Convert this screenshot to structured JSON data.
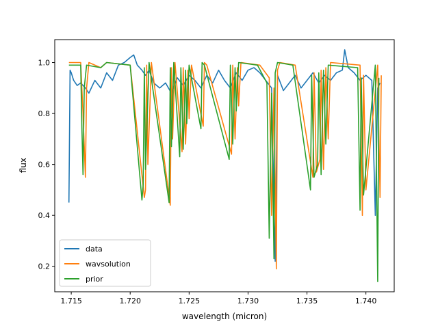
{
  "chart_data": {
    "type": "line",
    "title": "",
    "xlabel": "wavelength (micron)",
    "ylabel": "flux",
    "xlim": [
      1.7136,
      1.7424
    ],
    "ylim": [
      0.1,
      1.09
    ],
    "grid": false,
    "legend_position": "lower-left",
    "x_ticks": [
      1.715,
      1.72,
      1.725,
      1.73,
      1.735,
      1.74
    ],
    "x_tick_labels": [
      "1.715",
      "1.720",
      "1.725",
      "1.730",
      "1.735",
      "1.740"
    ],
    "y_ticks": [
      0.2,
      0.4,
      0.6,
      0.8,
      1.0
    ],
    "y_tick_labels": [
      "0.2",
      "0.4",
      "0.6",
      "0.8",
      "1.0"
    ],
    "series": [
      {
        "name": "data",
        "color": "#1f77b4",
        "x": [
          1.7148,
          1.7149,
          1.715,
          1.7152,
          1.7155,
          1.7158,
          1.7162,
          1.7165,
          1.717,
          1.7175,
          1.718,
          1.7185,
          1.719,
          1.7195,
          1.72,
          1.7203,
          1.7206,
          1.7208,
          1.721,
          1.7213,
          1.7216,
          1.722,
          1.7225,
          1.723,
          1.7235,
          1.724,
          1.7245,
          1.725,
          1.7255,
          1.726,
          1.7265,
          1.727,
          1.7275,
          1.728,
          1.7285,
          1.729,
          1.7295,
          1.73,
          1.7305,
          1.731,
          1.7315,
          1.732,
          1.7323,
          1.7325,
          1.733,
          1.7335,
          1.734,
          1.7345,
          1.735,
          1.7355,
          1.736,
          1.7365,
          1.737,
          1.7375,
          1.738,
          1.7382,
          1.7385,
          1.739,
          1.7395,
          1.74,
          1.7405,
          1.7408,
          1.741,
          1.7412
        ],
        "y": [
          0.45,
          0.97,
          0.96,
          0.93,
          0.91,
          0.92,
          0.9,
          0.88,
          0.93,
          0.9,
          0.96,
          0.93,
          0.99,
          1.0,
          1.02,
          1.03,
          0.99,
          0.98,
          0.97,
          0.95,
          0.97,
          0.92,
          0.9,
          0.92,
          0.88,
          0.94,
          0.91,
          0.95,
          0.93,
          0.9,
          0.95,
          0.92,
          0.97,
          0.93,
          0.9,
          0.96,
          0.93,
          0.97,
          0.98,
          0.96,
          0.93,
          0.9,
          0.22,
          0.95,
          0.89,
          0.92,
          0.95,
          0.9,
          0.93,
          0.96,
          0.92,
          0.95,
          0.93,
          0.96,
          0.97,
          1.05,
          0.98,
          0.96,
          0.93,
          0.95,
          0.93,
          0.4,
          0.9,
          0.92
        ]
      },
      {
        "name": "wavsolution",
        "color": "#ff7f0e",
        "x": [
          1.7148,
          1.7158,
          1.716,
          1.7162,
          1.7163,
          1.7165,
          1.7175,
          1.718,
          1.72,
          1.7212,
          1.7213,
          1.7214,
          1.7215,
          1.7218,
          1.7234,
          1.7235,
          1.7236,
          1.7238,
          1.7244,
          1.7245,
          1.7247,
          1.7249,
          1.725,
          1.7252,
          1.7262,
          1.7263,
          1.7265,
          1.7286,
          1.7287,
          1.7289,
          1.7291,
          1.7292,
          1.7294,
          1.731,
          1.7318,
          1.732,
          1.7322,
          1.7324,
          1.7325,
          1.7327,
          1.734,
          1.7355,
          1.7356,
          1.7358,
          1.7361,
          1.7362,
          1.7364,
          1.7366,
          1.7368,
          1.737,
          1.7395,
          1.7397,
          1.7398,
          1.74,
          1.741,
          1.7412,
          1.7413
        ],
        "y": [
          1.0,
          1.0,
          0.8,
          0.55,
          0.9,
          1.0,
          0.98,
          1.0,
          0.99,
          0.47,
          0.5,
          0.99,
          0.6,
          1.0,
          0.44,
          0.98,
          0.7,
          1.0,
          0.65,
          0.98,
          0.68,
          0.97,
          0.78,
          0.99,
          0.75,
          1.0,
          0.99,
          0.64,
          0.99,
          0.7,
          0.98,
          0.83,
          1.0,
          0.99,
          0.94,
          0.4,
          0.9,
          0.19,
          0.97,
          1.0,
          0.99,
          0.55,
          0.96,
          0.57,
          0.62,
          0.97,
          0.58,
          0.98,
          0.7,
          1.0,
          0.99,
          0.4,
          0.95,
          0.5,
          0.99,
          0.47,
          0.95
        ]
      },
      {
        "name": "prior",
        "color": "#2ca02c",
        "x": [
          1.7148,
          1.7158,
          1.7159,
          1.716,
          1.7161,
          1.7163,
          1.7175,
          1.718,
          1.72,
          1.721,
          1.7211,
          1.7212,
          1.7213,
          1.7216,
          1.7233,
          1.7234,
          1.7235,
          1.7237,
          1.7242,
          1.7243,
          1.7245,
          1.7247,
          1.7248,
          1.725,
          1.726,
          1.7261,
          1.7263,
          1.7284,
          1.7285,
          1.7287,
          1.7289,
          1.729,
          1.7292,
          1.7308,
          1.7316,
          1.7318,
          1.732,
          1.7322,
          1.7323,
          1.7325,
          1.7338,
          1.7353,
          1.7354,
          1.7356,
          1.7359,
          1.736,
          1.7362,
          1.7364,
          1.7366,
          1.7368,
          1.7393,
          1.7395,
          1.7396,
          1.7398,
          1.7408,
          1.741,
          1.7411
        ],
        "y": [
          0.99,
          0.99,
          0.75,
          0.56,
          0.9,
          0.99,
          0.98,
          1.0,
          0.99,
          0.46,
          0.52,
          0.98,
          0.58,
          1.0,
          0.45,
          0.98,
          0.67,
          1.0,
          0.63,
          0.98,
          0.66,
          0.97,
          0.76,
          0.99,
          0.74,
          1.0,
          0.99,
          0.62,
          0.99,
          0.68,
          0.98,
          0.81,
          1.0,
          0.99,
          0.92,
          0.31,
          0.88,
          0.23,
          0.96,
          1.0,
          0.99,
          0.5,
          0.95,
          0.55,
          0.6,
          0.96,
          0.56,
          0.97,
          0.68,
          0.99,
          0.98,
          0.42,
          0.94,
          0.48,
          0.99,
          0.14,
          0.94
        ]
      }
    ]
  }
}
